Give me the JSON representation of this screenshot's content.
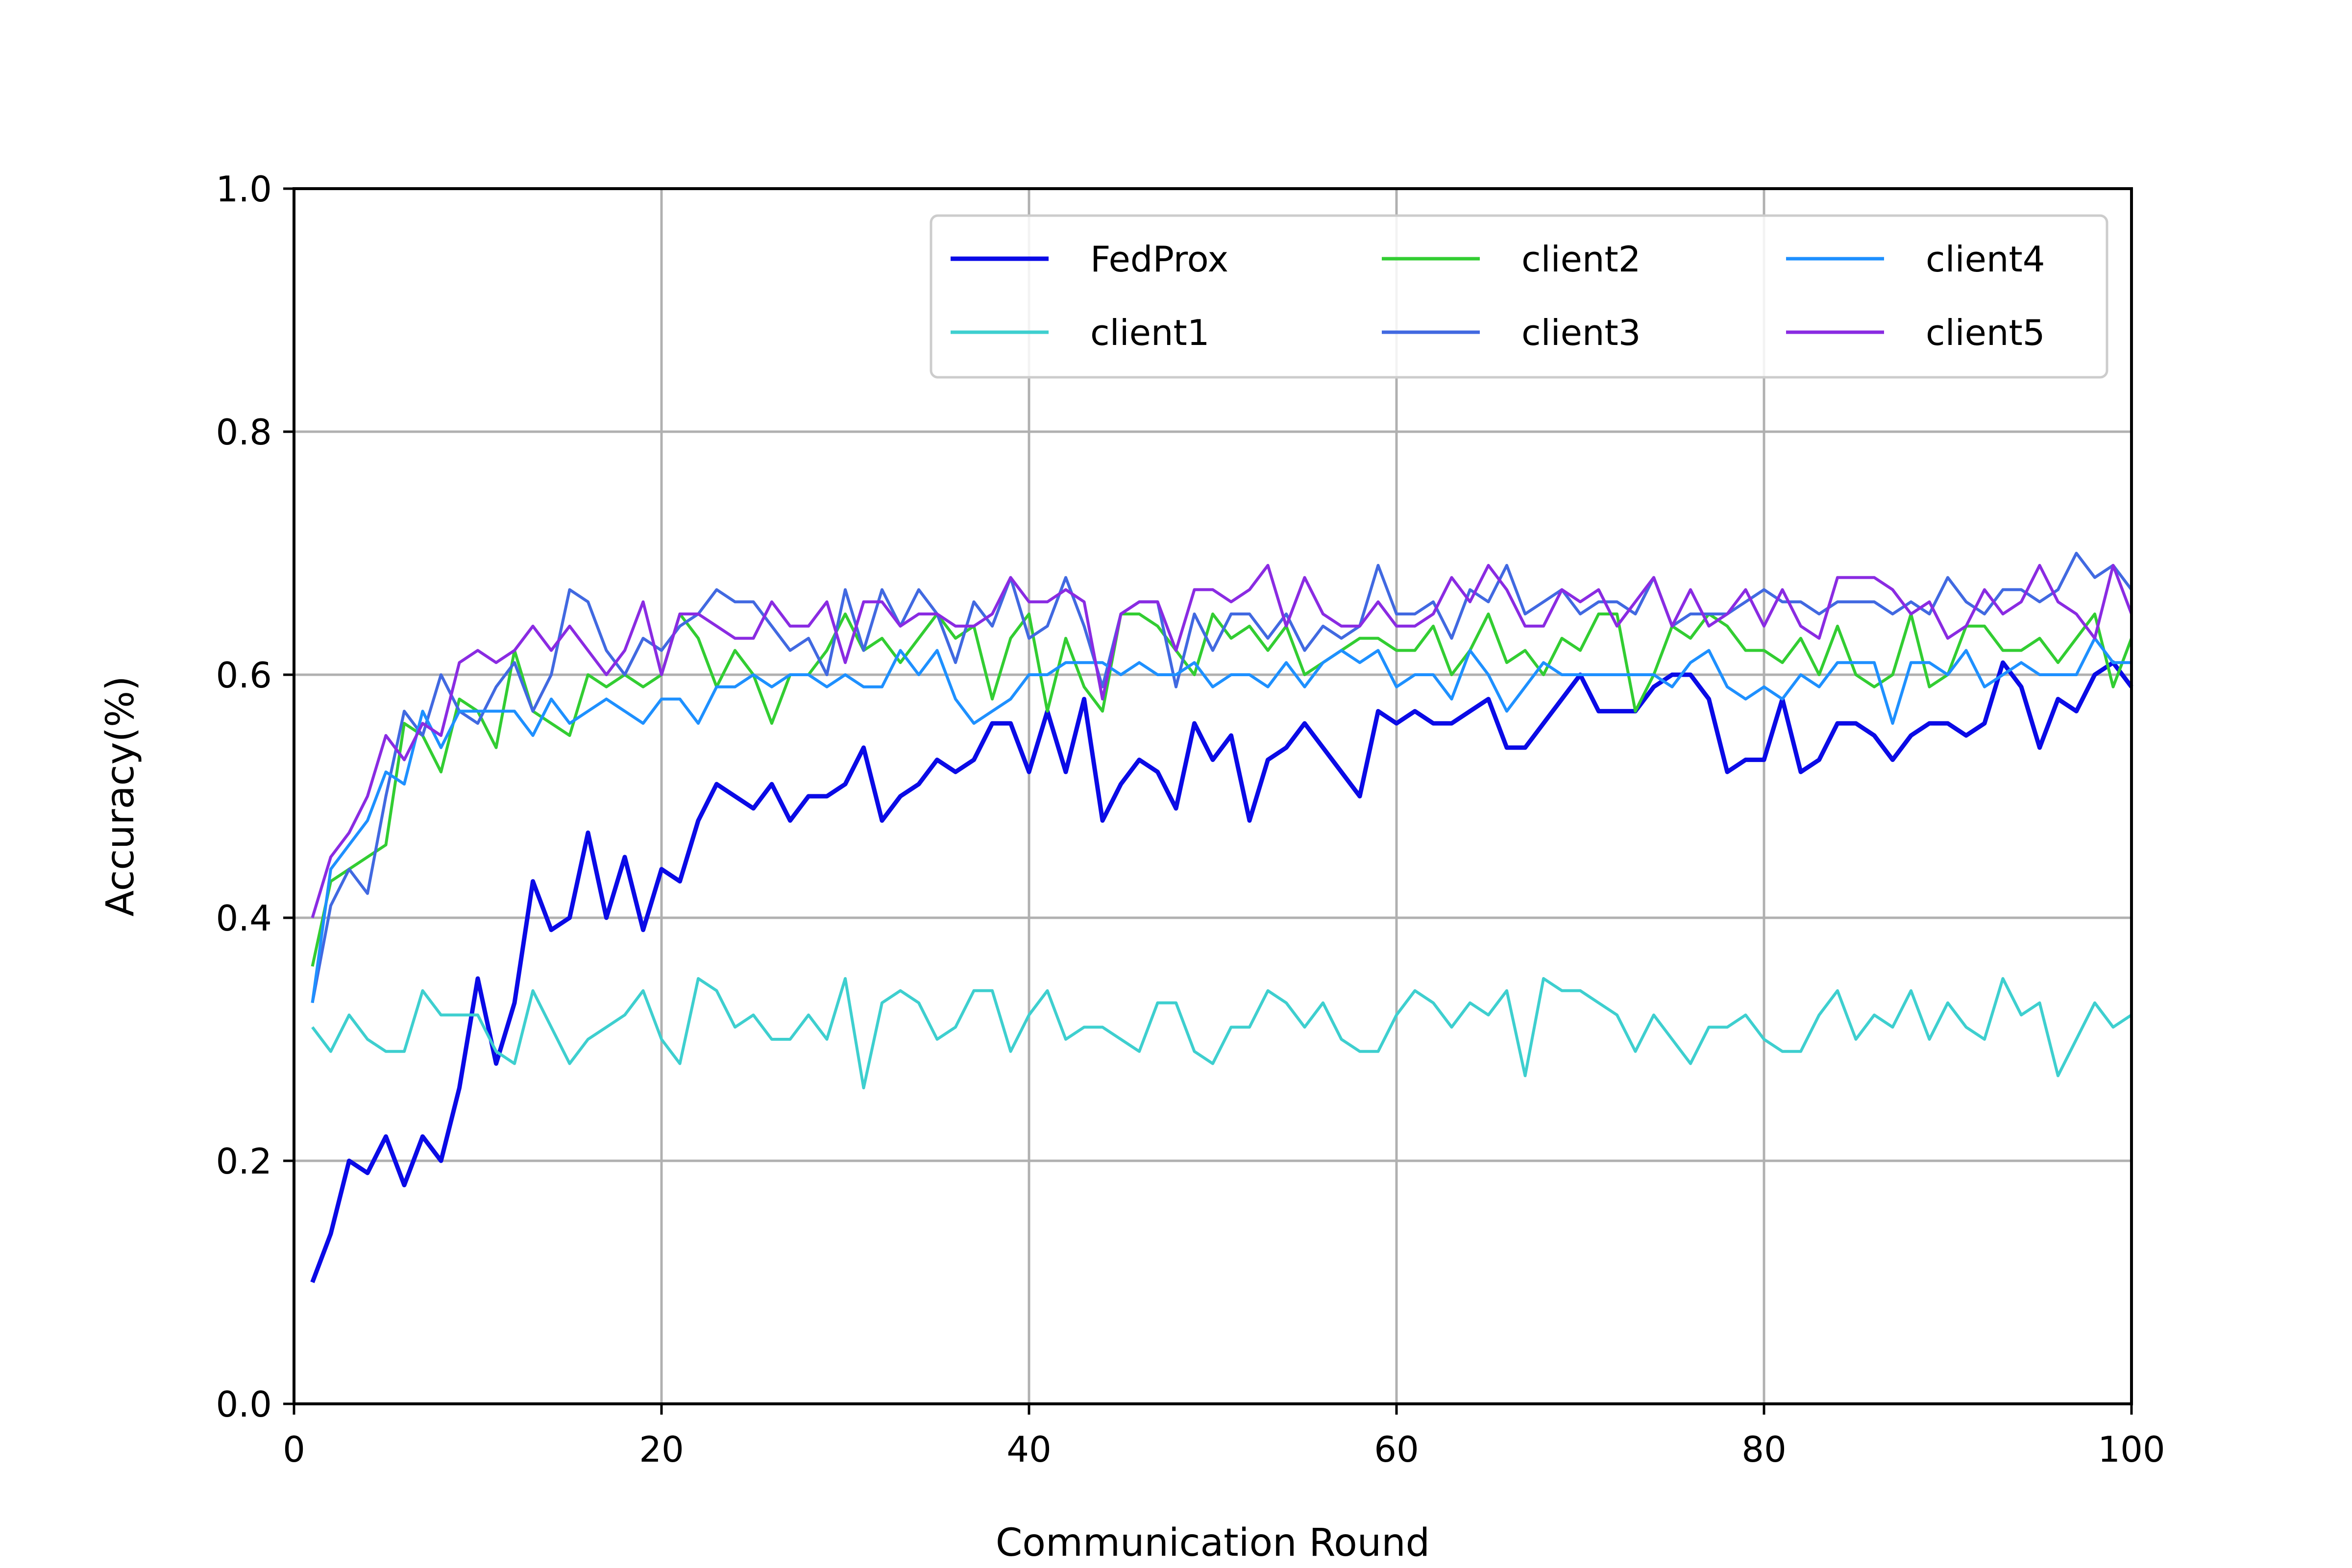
{
  "chart_data": {
    "type": "line",
    "title": "",
    "xlabel": "Communication Round",
    "ylabel": "Accuracy(%)",
    "xlim": [
      0,
      100
    ],
    "ylim": [
      0.0,
      1.0
    ],
    "xticks": [
      "0",
      "20",
      "40",
      "60",
      "80",
      "100"
    ],
    "yticks": [
      "0.0",
      "0.2",
      "0.4",
      "0.6",
      "0.8",
      "1.0"
    ],
    "grid": true,
    "legend_position": "top-right",
    "x": [
      1,
      2,
      3,
      4,
      5,
      6,
      7,
      8,
      9,
      10,
      11,
      12,
      13,
      14,
      15,
      16,
      17,
      18,
      19,
      20,
      21,
      22,
      23,
      24,
      25,
      26,
      27,
      28,
      29,
      30,
      31,
      32,
      33,
      34,
      35,
      36,
      37,
      38,
      39,
      40,
      41,
      42,
      43,
      44,
      45,
      46,
      47,
      48,
      49,
      50,
      51,
      52,
      53,
      54,
      55,
      56,
      57,
      58,
      59,
      60,
      61,
      62,
      63,
      64,
      65,
      66,
      67,
      68,
      69,
      70,
      71,
      72,
      73,
      74,
      75,
      76,
      77,
      78,
      79,
      80,
      81,
      82,
      83,
      84,
      85,
      86,
      87,
      88,
      89,
      90,
      91,
      92,
      93,
      94,
      95,
      96,
      97,
      98,
      99,
      100
    ],
    "series": [
      {
        "name": "FedProx",
        "color": "#0a0ae6",
        "values": [
          0.1,
          0.14,
          0.2,
          0.19,
          0.22,
          0.18,
          0.22,
          0.2,
          0.26,
          0.35,
          0.28,
          0.33,
          0.43,
          0.39,
          0.4,
          0.47,
          0.4,
          0.45,
          0.39,
          0.44,
          0.43,
          0.48,
          0.51,
          0.5,
          0.49,
          0.51,
          0.48,
          0.5,
          0.5,
          0.51,
          0.54,
          0.48,
          0.5,
          0.51,
          0.53,
          0.52,
          0.53,
          0.56,
          0.56,
          0.52,
          0.57,
          0.52,
          0.58,
          0.48,
          0.51,
          0.53,
          0.52,
          0.49,
          0.56,
          0.53,
          0.55,
          0.48,
          0.53,
          0.54,
          0.56,
          0.54,
          0.52,
          0.5,
          0.57,
          0.56,
          0.57,
          0.56,
          0.56,
          0.57,
          0.58,
          0.54,
          0.54,
          0.56,
          0.58,
          0.6,
          0.57,
          0.57,
          0.57,
          0.59,
          0.6,
          0.6,
          0.58,
          0.52,
          0.53,
          0.53,
          0.58,
          0.52,
          0.53,
          0.56,
          0.56,
          0.55,
          0.53,
          0.55,
          0.56,
          0.56,
          0.55,
          0.56,
          0.61,
          0.59,
          0.54,
          0.58,
          0.57,
          0.6,
          0.61,
          0.59
        ]
      },
      {
        "name": "client1",
        "color": "#3ecfcf",
        "values": [
          0.31,
          0.29,
          0.32,
          0.3,
          0.29,
          0.29,
          0.34,
          0.32,
          0.32,
          0.32,
          0.29,
          0.28,
          0.34,
          0.31,
          0.28,
          0.3,
          0.31,
          0.32,
          0.34,
          0.3,
          0.28,
          0.35,
          0.34,
          0.31,
          0.32,
          0.3,
          0.3,
          0.32,
          0.3,
          0.35,
          0.26,
          0.33,
          0.34,
          0.33,
          0.3,
          0.31,
          0.34,
          0.34,
          0.29,
          0.32,
          0.34,
          0.3,
          0.31,
          0.31,
          0.3,
          0.29,
          0.33,
          0.33,
          0.29,
          0.28,
          0.31,
          0.31,
          0.34,
          0.33,
          0.31,
          0.33,
          0.3,
          0.29,
          0.29,
          0.32,
          0.34,
          0.33,
          0.31,
          0.33,
          0.32,
          0.34,
          0.27,
          0.35,
          0.34,
          0.34,
          0.33,
          0.32,
          0.29,
          0.32,
          0.3,
          0.28,
          0.31,
          0.31,
          0.32,
          0.3,
          0.29,
          0.29,
          0.32,
          0.34,
          0.3,
          0.32,
          0.31,
          0.34,
          0.3,
          0.33,
          0.31,
          0.3,
          0.35,
          0.32,
          0.33,
          0.27,
          0.3,
          0.33,
          0.31,
          0.32
        ]
      },
      {
        "name": "client2",
        "color": "#32cd32",
        "values": [
          0.36,
          0.43,
          0.44,
          0.45,
          0.46,
          0.56,
          0.55,
          0.52,
          0.58,
          0.57,
          0.54,
          0.62,
          0.57,
          0.56,
          0.55,
          0.6,
          0.59,
          0.6,
          0.59,
          0.6,
          0.65,
          0.63,
          0.59,
          0.62,
          0.6,
          0.56,
          0.6,
          0.6,
          0.62,
          0.65,
          0.62,
          0.63,
          0.61,
          0.63,
          0.65,
          0.63,
          0.64,
          0.58,
          0.63,
          0.65,
          0.57,
          0.63,
          0.59,
          0.57,
          0.65,
          0.65,
          0.64,
          0.62,
          0.6,
          0.65,
          0.63,
          0.64,
          0.62,
          0.64,
          0.6,
          0.61,
          0.62,
          0.63,
          0.63,
          0.62,
          0.62,
          0.64,
          0.6,
          0.62,
          0.65,
          0.61,
          0.62,
          0.6,
          0.63,
          0.62,
          0.65,
          0.65,
          0.57,
          0.6,
          0.64,
          0.63,
          0.65,
          0.64,
          0.62,
          0.62,
          0.61,
          0.63,
          0.6,
          0.64,
          0.6,
          0.59,
          0.6,
          0.65,
          0.59,
          0.6,
          0.64,
          0.64,
          0.62,
          0.62,
          0.63,
          0.61,
          0.63,
          0.65,
          0.59,
          0.63
        ]
      },
      {
        "name": "client3",
        "color": "#4169e1",
        "values": [
          0.33,
          0.41,
          0.44,
          0.42,
          0.5,
          0.57,
          0.55,
          0.6,
          0.57,
          0.56,
          0.59,
          0.61,
          0.57,
          0.6,
          0.67,
          0.66,
          0.62,
          0.6,
          0.63,
          0.62,
          0.64,
          0.65,
          0.67,
          0.66,
          0.66,
          0.64,
          0.62,
          0.63,
          0.6,
          0.67,
          0.62,
          0.67,
          0.64,
          0.67,
          0.65,
          0.61,
          0.66,
          0.64,
          0.68,
          0.63,
          0.64,
          0.68,
          0.64,
          0.59,
          0.65,
          0.66,
          0.66,
          0.59,
          0.65,
          0.62,
          0.65,
          0.65,
          0.63,
          0.65,
          0.62,
          0.64,
          0.63,
          0.64,
          0.69,
          0.65,
          0.65,
          0.66,
          0.63,
          0.67,
          0.66,
          0.69,
          0.65,
          0.66,
          0.67,
          0.65,
          0.66,
          0.66,
          0.65,
          0.68,
          0.64,
          0.65,
          0.65,
          0.65,
          0.66,
          0.67,
          0.66,
          0.66,
          0.65,
          0.66,
          0.66,
          0.66,
          0.65,
          0.66,
          0.65,
          0.68,
          0.66,
          0.65,
          0.67,
          0.67,
          0.66,
          0.67,
          0.7,
          0.68,
          0.69,
          0.67
        ]
      },
      {
        "name": "client4",
        "color": "#1e90ff",
        "values": [
          0.33,
          0.44,
          0.46,
          0.48,
          0.52,
          0.51,
          0.57,
          0.54,
          0.57,
          0.57,
          0.57,
          0.57,
          0.55,
          0.58,
          0.56,
          0.57,
          0.58,
          0.57,
          0.56,
          0.58,
          0.58,
          0.56,
          0.59,
          0.59,
          0.6,
          0.59,
          0.6,
          0.6,
          0.59,
          0.6,
          0.59,
          0.59,
          0.62,
          0.6,
          0.62,
          0.58,
          0.56,
          0.57,
          0.58,
          0.6,
          0.6,
          0.61,
          0.61,
          0.61,
          0.6,
          0.61,
          0.6,
          0.6,
          0.61,
          0.59,
          0.6,
          0.6,
          0.59,
          0.61,
          0.59,
          0.61,
          0.62,
          0.61,
          0.62,
          0.59,
          0.6,
          0.6,
          0.58,
          0.62,
          0.6,
          0.57,
          0.59,
          0.61,
          0.6,
          0.6,
          0.6,
          0.6,
          0.6,
          0.6,
          0.59,
          0.61,
          0.62,
          0.59,
          0.58,
          0.59,
          0.58,
          0.6,
          0.59,
          0.61,
          0.61,
          0.61,
          0.56,
          0.61,
          0.61,
          0.6,
          0.62,
          0.59,
          0.6,
          0.61,
          0.6,
          0.6,
          0.6,
          0.63,
          0.61,
          0.61
        ]
      },
      {
        "name": "client5",
        "color": "#8a2be2",
        "values": [
          0.4,
          0.45,
          0.47,
          0.5,
          0.55,
          0.53,
          0.56,
          0.55,
          0.61,
          0.62,
          0.61,
          0.62,
          0.64,
          0.62,
          0.64,
          0.62,
          0.6,
          0.62,
          0.66,
          0.6,
          0.65,
          0.65,
          0.64,
          0.63,
          0.63,
          0.66,
          0.64,
          0.64,
          0.66,
          0.61,
          0.66,
          0.66,
          0.64,
          0.65,
          0.65,
          0.64,
          0.64,
          0.65,
          0.68,
          0.66,
          0.66,
          0.67,
          0.66,
          0.58,
          0.65,
          0.66,
          0.66,
          0.62,
          0.67,
          0.67,
          0.66,
          0.67,
          0.69,
          0.64,
          0.68,
          0.65,
          0.64,
          0.64,
          0.66,
          0.64,
          0.64,
          0.65,
          0.68,
          0.66,
          0.69,
          0.67,
          0.64,
          0.64,
          0.67,
          0.66,
          0.67,
          0.64,
          0.66,
          0.68,
          0.64,
          0.67,
          0.64,
          0.65,
          0.67,
          0.64,
          0.67,
          0.64,
          0.63,
          0.68,
          0.68,
          0.68,
          0.67,
          0.65,
          0.66,
          0.63,
          0.64,
          0.67,
          0.65,
          0.66,
          0.69,
          0.66,
          0.65,
          0.63,
          0.69,
          0.65
        ]
      }
    ]
  }
}
